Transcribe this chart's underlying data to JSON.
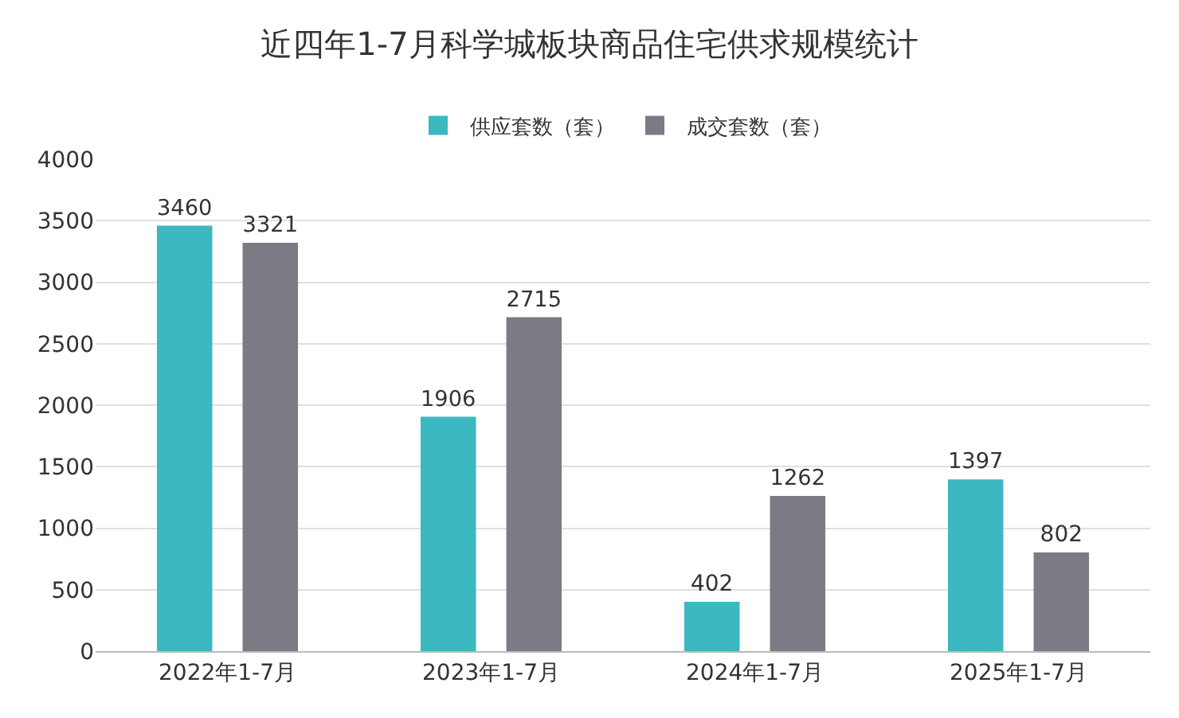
{
  "chart_data": {
    "type": "bar",
    "title": "近四年1-7月科学城板块商品住宅供求规模统计",
    "categories": [
      "2022年1-7月",
      "2023年1-7月",
      "2024年1-7月",
      "2025年1-7月"
    ],
    "series": [
      {
        "name": "供应套数（套）",
        "color": "#3bb8c0",
        "values": [
          3460,
          1906,
          402,
          1397
        ]
      },
      {
        "name": "成交套数（套）",
        "color": "#7a7b85",
        "values": [
          3321,
          2715,
          1262,
          802
        ]
      }
    ],
    "ylim": [
      0,
      4000
    ],
    "yticks": [
      0,
      500,
      1000,
      1500,
      2000,
      2500,
      3000,
      3500,
      4000
    ],
    "grid": "y",
    "legend": "top",
    "data_labels": true
  }
}
